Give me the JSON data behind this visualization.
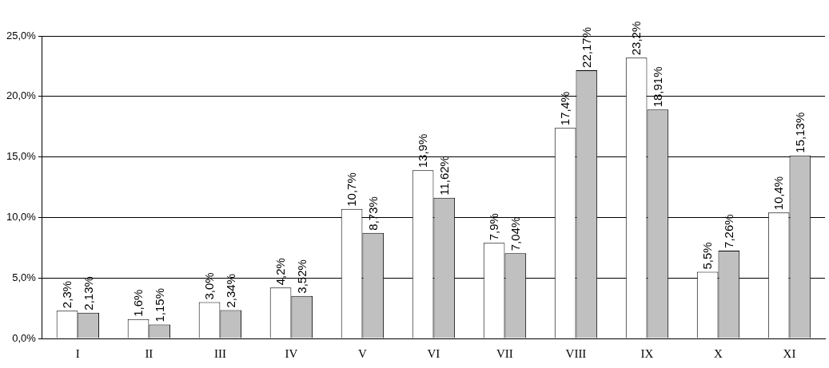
{
  "chart_data": {
    "type": "bar",
    "categories": [
      "I",
      "II",
      "III",
      "IV",
      "V",
      "VI",
      "VII",
      "VIII",
      "IX",
      "X",
      "XI"
    ],
    "series": [
      {
        "color": "#ffffff",
        "values": [
          2.3,
          1.6,
          3.0,
          4.2,
          10.7,
          13.9,
          7.9,
          17.4,
          23.2,
          5.5,
          10.4
        ],
        "value_labels": [
          "2,3%",
          "1,6%",
          "3,0%",
          "4,2%",
          "10,7%",
          "13,9%",
          "7,9%",
          "17,4%",
          "23,2%",
          "5,5%",
          "10,4%"
        ]
      },
      {
        "color": "#c0c0c0",
        "values": [
          2.13,
          1.15,
          2.34,
          3.52,
          8.73,
          11.62,
          7.04,
          22.17,
          18.91,
          7.26,
          15.13
        ],
        "value_labels": [
          "2,13%",
          "1,15%",
          "2,34%",
          "3,52%",
          "8,73%",
          "11,62%",
          "7,04%",
          "22,17%",
          "18,91%",
          "7,26%",
          "15,13%"
        ]
      }
    ],
    "ylim": [
      0,
      25
    ],
    "yticks": [
      {
        "value": 0,
        "label": "0,0%"
      },
      {
        "value": 5,
        "label": "5,0%"
      },
      {
        "value": 10,
        "label": "10,0%"
      },
      {
        "value": 15,
        "label": "15,0%"
      },
      {
        "value": 20,
        "label": "20,0%"
      },
      {
        "value": 25,
        "label": "25,0%"
      }
    ],
    "grid": "y",
    "legend": false
  }
}
